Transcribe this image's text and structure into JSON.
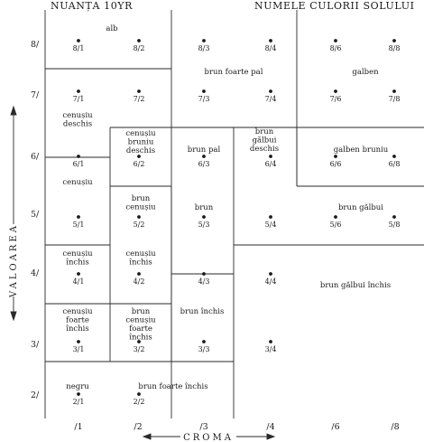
{
  "header": {
    "hue": "NUANȚA 10YR",
    "names": "NUMELE CULORII SOLULUI"
  },
  "axes": {
    "value_title": "VALOAREA",
    "chroma_title": "CROMA",
    "value_ticks": [
      "8/",
      "7/",
      "6/",
      "5/",
      "4/",
      "3/",
      "2/"
    ],
    "chroma_ticks": [
      "/1",
      "/2",
      "/3",
      "/4",
      "/6",
      "/8"
    ]
  },
  "chips": [
    {
      "code": "8/1"
    },
    {
      "code": "8/2"
    },
    {
      "code": "8/3"
    },
    {
      "code": "8/4"
    },
    {
      "code": "8/6"
    },
    {
      "code": "8/8"
    },
    {
      "code": "7/1"
    },
    {
      "code": "7/2"
    },
    {
      "code": "7/3"
    },
    {
      "code": "7/4"
    },
    {
      "code": "7/6"
    },
    {
      "code": "7/8"
    },
    {
      "code": "6/1"
    },
    {
      "code": "6/2"
    },
    {
      "code": "6/3"
    },
    {
      "code": "6/4"
    },
    {
      "code": "6/6"
    },
    {
      "code": "6/8"
    },
    {
      "code": "5/1"
    },
    {
      "code": "5/2"
    },
    {
      "code": "5/3"
    },
    {
      "code": "5/4"
    },
    {
      "code": "5/6"
    },
    {
      "code": "5/8"
    },
    {
      "code": "4/1"
    },
    {
      "code": "4/2"
    },
    {
      "code": "4/3"
    },
    {
      "code": "4/4"
    },
    {
      "code": "3/1"
    },
    {
      "code": "3/2"
    },
    {
      "code": "3/3"
    },
    {
      "code": "3/4"
    },
    {
      "code": "2/1"
    },
    {
      "code": "2/2"
    }
  ],
  "color_names": [
    {
      "id": "alb",
      "lines": [
        "alb"
      ]
    },
    {
      "id": "brun-foarte-pal",
      "lines": [
        "brun foarte pal"
      ]
    },
    {
      "id": "galben",
      "lines": [
        "galben"
      ]
    },
    {
      "id": "cenusiu-deschis",
      "lines": [
        "cenușiu",
        "deschis"
      ]
    },
    {
      "id": "cenusiu-bruniu-deschis",
      "lines": [
        "cenușiu",
        "bruniu",
        "deschis"
      ]
    },
    {
      "id": "brun-pal",
      "lines": [
        "brun pal"
      ]
    },
    {
      "id": "brun-galbui-deschis",
      "lines": [
        "brun",
        "gălbui",
        "deschis"
      ]
    },
    {
      "id": "galben-bruniu",
      "lines": [
        "galben bruniu"
      ]
    },
    {
      "id": "cenusiu",
      "lines": [
        "cenușiu"
      ]
    },
    {
      "id": "brun-cenusiu",
      "lines": [
        "brun",
        "cenușiu"
      ]
    },
    {
      "id": "brun",
      "lines": [
        "brun"
      ]
    },
    {
      "id": "brun-galbui",
      "lines": [
        "brun gălbui"
      ]
    },
    {
      "id": "cenusiu-inchis",
      "lines": [
        "cenușiu",
        "închis"
      ]
    },
    {
      "id": "cenusiu-inchis-2",
      "lines": [
        "cenușiu",
        "închis"
      ]
    },
    {
      "id": "brun-galbui-inchis",
      "lines": [
        "brun gălbui închis"
      ]
    },
    {
      "id": "cenusiu-foarte-inchis",
      "lines": [
        "cenușiu",
        "foarte",
        "închis"
      ]
    },
    {
      "id": "brun-cenusiu-foarte-inchis",
      "lines": [
        "brun",
        "cenușiu",
        "foarte",
        "închis"
      ]
    },
    {
      "id": "brun-inchis",
      "lines": [
        "brun închis"
      ]
    },
    {
      "id": "negru",
      "lines": [
        "negru"
      ]
    },
    {
      "id": "brun-foarte-inchis",
      "lines": [
        "brun foarte închis"
      ]
    }
  ]
}
